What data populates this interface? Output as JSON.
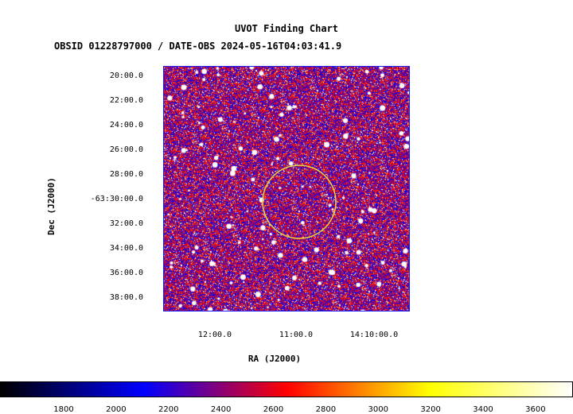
{
  "chart_data": {
    "type": "heatmap",
    "title": "UVOT Finding Chart",
    "subtitle": "OBSID 01228797000 / DATE-OBS 2024-05-16T04:03:41.9",
    "xlabel": "RA (J2000)",
    "ylabel": "Dec (J2000)",
    "x_ticks": [
      "12:00.0",
      "11:00.0",
      "14:10:00.0"
    ],
    "y_ticks": [
      "20:00.0",
      "22:00.0",
      "24:00.0",
      "26:00.0",
      "28:00.0",
      "-63:30:00.0",
      "32:00.0",
      "34:00.0",
      "36:00.0",
      "38:00.0"
    ],
    "colorbar_ticks": [
      "1800",
      "2000",
      "2200",
      "2400",
      "2600",
      "2800",
      "3000",
      "3200",
      "3400",
      "3600"
    ],
    "colorbar_range": [
      1560,
      3740
    ],
    "colormap": [
      "#000000",
      "#0000ff",
      "#ff0000",
      "#ffff00",
      "#ffffff"
    ],
    "frame_color": "#1a1aff",
    "circle_color": "#e8d840"
  }
}
